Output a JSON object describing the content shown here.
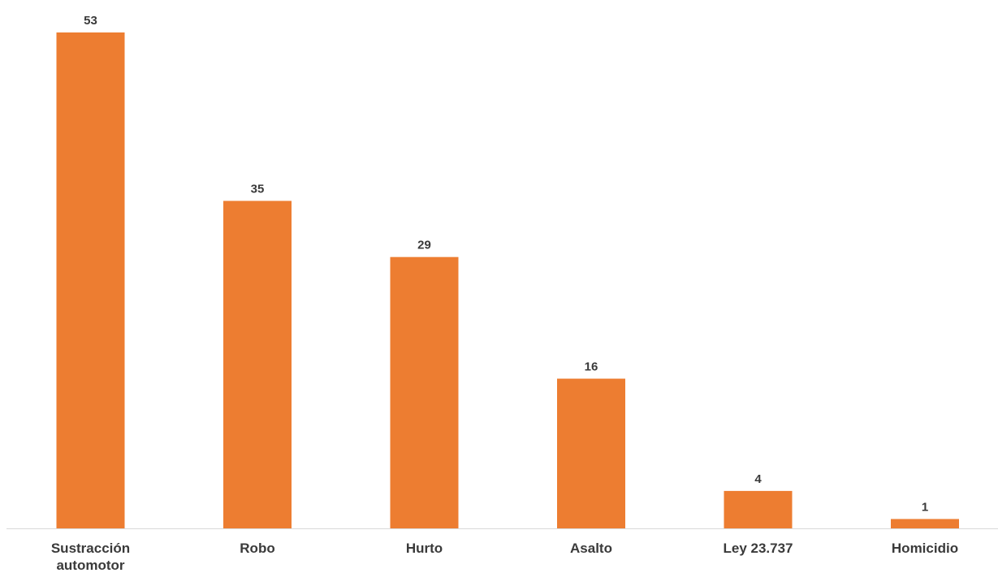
{
  "chart_data": {
    "type": "bar",
    "categories": [
      [
        "Sustracción",
        "automotor"
      ],
      [
        "Robo"
      ],
      [
        "Hurto"
      ],
      [
        "Asalto"
      ],
      [
        "Ley 23.737"
      ],
      [
        "Homicidio"
      ]
    ],
    "values": [
      53,
      35,
      29,
      16,
      4,
      1
    ],
    "title": "",
    "xlabel": "",
    "ylabel": "",
    "ylim": [
      0,
      53
    ],
    "grid": false,
    "legend": "none",
    "bar_color": "#ED7D31",
    "axis_color": "#D9D9D9",
    "label_color": "#3A3A3A"
  }
}
